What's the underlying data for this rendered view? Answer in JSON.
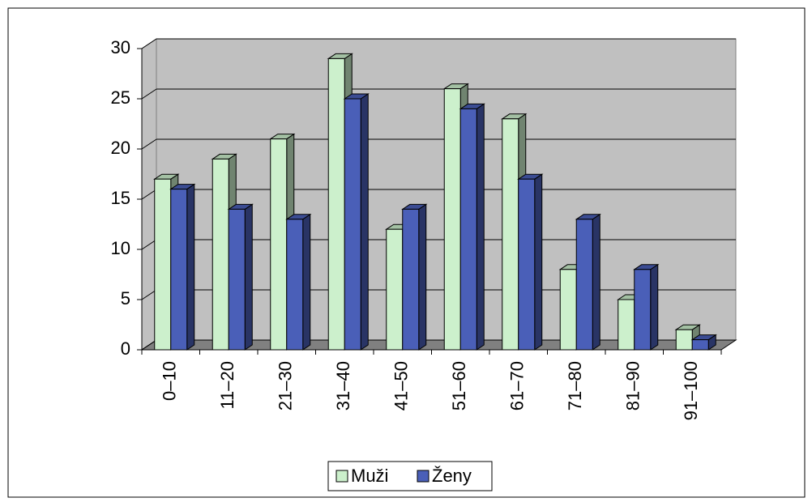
{
  "chart_data": {
    "type": "bar",
    "categories": [
      "0–10",
      "11–20",
      "21–30",
      "31–40",
      "41–50",
      "51–60",
      "61–70",
      "71–80",
      "81–90",
      "91–100"
    ],
    "series": [
      {
        "name": "Muži",
        "color": "#ccf0cc",
        "values": [
          17,
          19,
          21,
          29,
          12,
          26,
          23,
          8,
          5,
          2
        ]
      },
      {
        "name": "Ženy",
        "color": "#4a5fb8",
        "values": [
          16,
          14,
          13,
          25,
          14,
          24,
          17,
          13,
          8,
          1
        ]
      }
    ],
    "ylim": [
      0,
      30
    ],
    "yticks": [
      0,
      5,
      10,
      15,
      20,
      25,
      30
    ],
    "grid": true,
    "legend": "bottom"
  }
}
